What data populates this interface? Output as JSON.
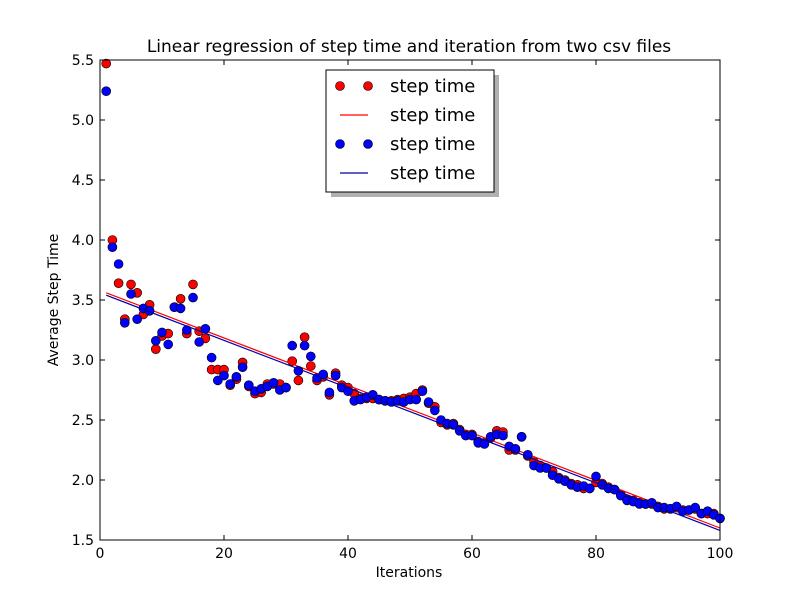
{
  "chart_data": {
    "type": "scatter",
    "title": "Linear regression of step time and iteration from two csv files",
    "xlabel": "Iterations",
    "ylabel": "Average Step Time",
    "xlim": [
      0,
      100
    ],
    "ylim": [
      1.5,
      5.5
    ],
    "x_ticks": [
      "0",
      "20",
      "40",
      "60",
      "80",
      "100"
    ],
    "y_ticks": [
      "1.5",
      "2.0",
      "2.5",
      "3.0",
      "3.5",
      "4.0",
      "4.5",
      "5.0",
      "5.5"
    ],
    "grid": false,
    "legend_position": "top-center",
    "legend": [
      "step time",
      "step time",
      "step time",
      "step time"
    ],
    "colors": {
      "red": "#ff0000",
      "blue": "#0000ff",
      "line_red": "#ff0000",
      "line_blue": "#0000aa"
    },
    "series": [
      {
        "kind": "points",
        "color": "red",
        "x": [
          1,
          2,
          3,
          4,
          5,
          6,
          7,
          8,
          9,
          10,
          11,
          12,
          13,
          14,
          15,
          16,
          17,
          18,
          19,
          20,
          21,
          22,
          23,
          24,
          25,
          26,
          27,
          28,
          29,
          30,
          31,
          32,
          33,
          34,
          35,
          36,
          37,
          38,
          39,
          40,
          41,
          42,
          43,
          44,
          45,
          46,
          47,
          48,
          49,
          50,
          51,
          52,
          53,
          54,
          55,
          56,
          57,
          58,
          59,
          60,
          61,
          62,
          63,
          64,
          65,
          66,
          67,
          68,
          69,
          70,
          71,
          72,
          73,
          74,
          75,
          76,
          77,
          78,
          79,
          80,
          81,
          82,
          83,
          84,
          85,
          86,
          87,
          88,
          89,
          90,
          91,
          92,
          93,
          94,
          95,
          96,
          97,
          98,
          99,
          100
        ],
        "y": [
          5.47,
          4.0,
          3.64,
          3.34,
          3.63,
          3.56,
          3.38,
          3.46,
          3.09,
          3.2,
          3.22,
          3.44,
          3.51,
          3.22,
          3.63,
          3.24,
          3.18,
          2.92,
          2.92,
          2.92,
          2.79,
          2.84,
          2.98,
          2.78,
          2.72,
          2.73,
          2.8,
          2.8,
          2.8,
          2.77,
          2.99,
          2.83,
          3.19,
          2.95,
          2.83,
          2.86,
          2.71,
          2.89,
          2.79,
          2.77,
          2.72,
          2.68,
          2.68,
          2.68,
          2.67,
          2.66,
          2.66,
          2.67,
          2.68,
          2.69,
          2.72,
          2.75,
          2.64,
          2.61,
          2.48,
          2.46,
          2.47,
          2.42,
          2.38,
          2.38,
          2.32,
          2.31,
          2.35,
          2.41,
          2.4,
          2.25,
          2.25,
          2.36,
          2.2,
          2.15,
          2.12,
          2.1,
          2.07,
          2.02,
          2.0,
          1.97,
          1.96,
          1.93,
          1.93,
          1.98,
          1.97,
          1.94,
          1.92,
          1.88,
          1.84,
          1.83,
          1.81,
          1.8,
          1.8,
          1.78,
          1.76,
          1.76,
          1.77,
          1.75,
          1.75,
          1.76,
          1.72,
          1.72,
          1.72,
          1.68
        ]
      },
      {
        "kind": "line",
        "color": "line_red",
        "x": [
          1,
          100
        ],
        "y": [
          3.56,
          1.6
        ]
      },
      {
        "kind": "points",
        "color": "blue",
        "x": [
          1,
          2,
          3,
          4,
          5,
          6,
          7,
          8,
          9,
          10,
          11,
          12,
          13,
          14,
          15,
          16,
          17,
          18,
          19,
          20,
          21,
          22,
          23,
          24,
          25,
          26,
          27,
          28,
          29,
          30,
          31,
          32,
          33,
          34,
          35,
          36,
          37,
          38,
          39,
          40,
          41,
          42,
          43,
          44,
          45,
          46,
          47,
          48,
          49,
          50,
          51,
          52,
          53,
          54,
          55,
          56,
          57,
          58,
          59,
          60,
          61,
          62,
          63,
          64,
          65,
          66,
          67,
          68,
          69,
          70,
          71,
          72,
          73,
          74,
          75,
          76,
          77,
          78,
          79,
          80,
          81,
          82,
          83,
          84,
          85,
          86,
          87,
          88,
          89,
          90,
          91,
          92,
          93,
          94,
          95,
          96,
          97,
          98,
          99,
          100
        ],
        "y": [
          5.24,
          3.94,
          3.8,
          3.31,
          3.55,
          3.34,
          3.43,
          3.41,
          3.16,
          3.23,
          3.13,
          3.44,
          3.43,
          3.25,
          3.52,
          3.15,
          3.26,
          3.02,
          2.83,
          2.87,
          2.8,
          2.86,
          2.94,
          2.79,
          2.74,
          2.76,
          2.78,
          2.81,
          2.75,
          2.77,
          3.12,
          2.91,
          3.12,
          3.03,
          2.85,
          2.88,
          2.73,
          2.87,
          2.77,
          2.74,
          2.66,
          2.67,
          2.69,
          2.71,
          2.67,
          2.66,
          2.65,
          2.66,
          2.65,
          2.67,
          2.67,
          2.74,
          2.65,
          2.58,
          2.5,
          2.47,
          2.46,
          2.41,
          2.37,
          2.37,
          2.31,
          2.3,
          2.36,
          2.38,
          2.37,
          2.28,
          2.26,
          2.36,
          2.21,
          2.12,
          2.1,
          2.1,
          2.04,
          2.01,
          1.99,
          1.96,
          1.94,
          1.95,
          1.93,
          2.03,
          1.96,
          1.93,
          1.92,
          1.87,
          1.83,
          1.82,
          1.8,
          1.8,
          1.81,
          1.77,
          1.77,
          1.76,
          1.78,
          1.74,
          1.75,
          1.77,
          1.72,
          1.74,
          1.71,
          1.68
        ]
      },
      {
        "kind": "line",
        "color": "line_blue",
        "x": [
          1,
          100
        ],
        "y": [
          3.54,
          1.58
        ]
      }
    ]
  }
}
